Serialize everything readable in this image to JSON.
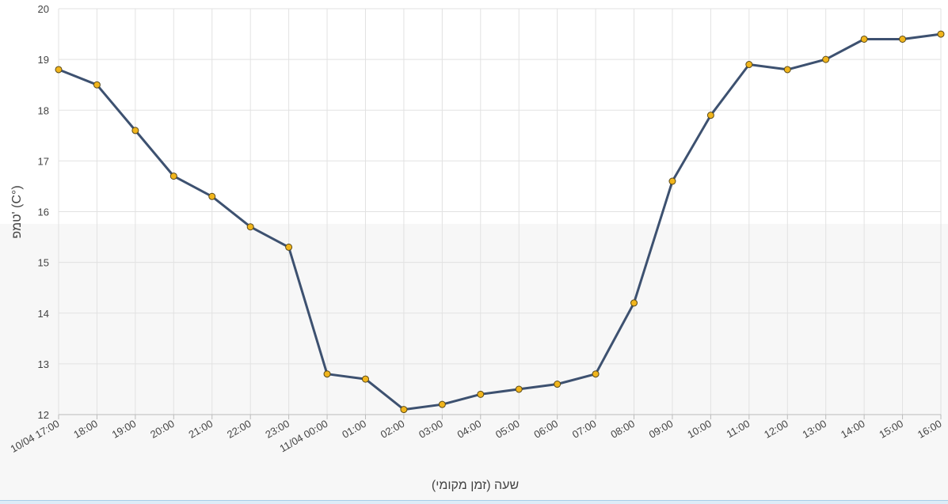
{
  "chart_data": {
    "type": "line",
    "xlabel": "שעה (זמן מקומי)",
    "ylabel": "טמפ' (C°)",
    "ylim": [
      12,
      20
    ],
    "yticks": [
      12,
      13,
      14,
      15,
      16,
      17,
      18,
      19,
      20
    ],
    "grid": true,
    "categories": [
      "10/04 17:00",
      "18:00",
      "19:00",
      "20:00",
      "21:00",
      "22:00",
      "23:00",
      "11/04 00:00",
      "01:00",
      "02:00",
      "03:00",
      "04:00",
      "05:00",
      "06:00",
      "07:00",
      "08:00",
      "09:00",
      "10:00",
      "11:00",
      "12:00",
      "13:00",
      "14:00",
      "15:00",
      "16:00"
    ],
    "series": [
      {
        "values": [
          18.8,
          18.5,
          17.6,
          16.7,
          16.3,
          15.7,
          15.3,
          12.8,
          12.7,
          12.1,
          12.2,
          12.4,
          12.5,
          12.6,
          12.8,
          14.2,
          16.6,
          17.9,
          18.9,
          18.8,
          19.0,
          19.4,
          19.4,
          19.5
        ]
      }
    ],
    "colors": {
      "line": "#3d5170",
      "marker_fill": "#f1b51c",
      "marker_stroke": "#5a4a1a",
      "grid": "#e2e2e2",
      "axis_text": "#444444"
    }
  }
}
